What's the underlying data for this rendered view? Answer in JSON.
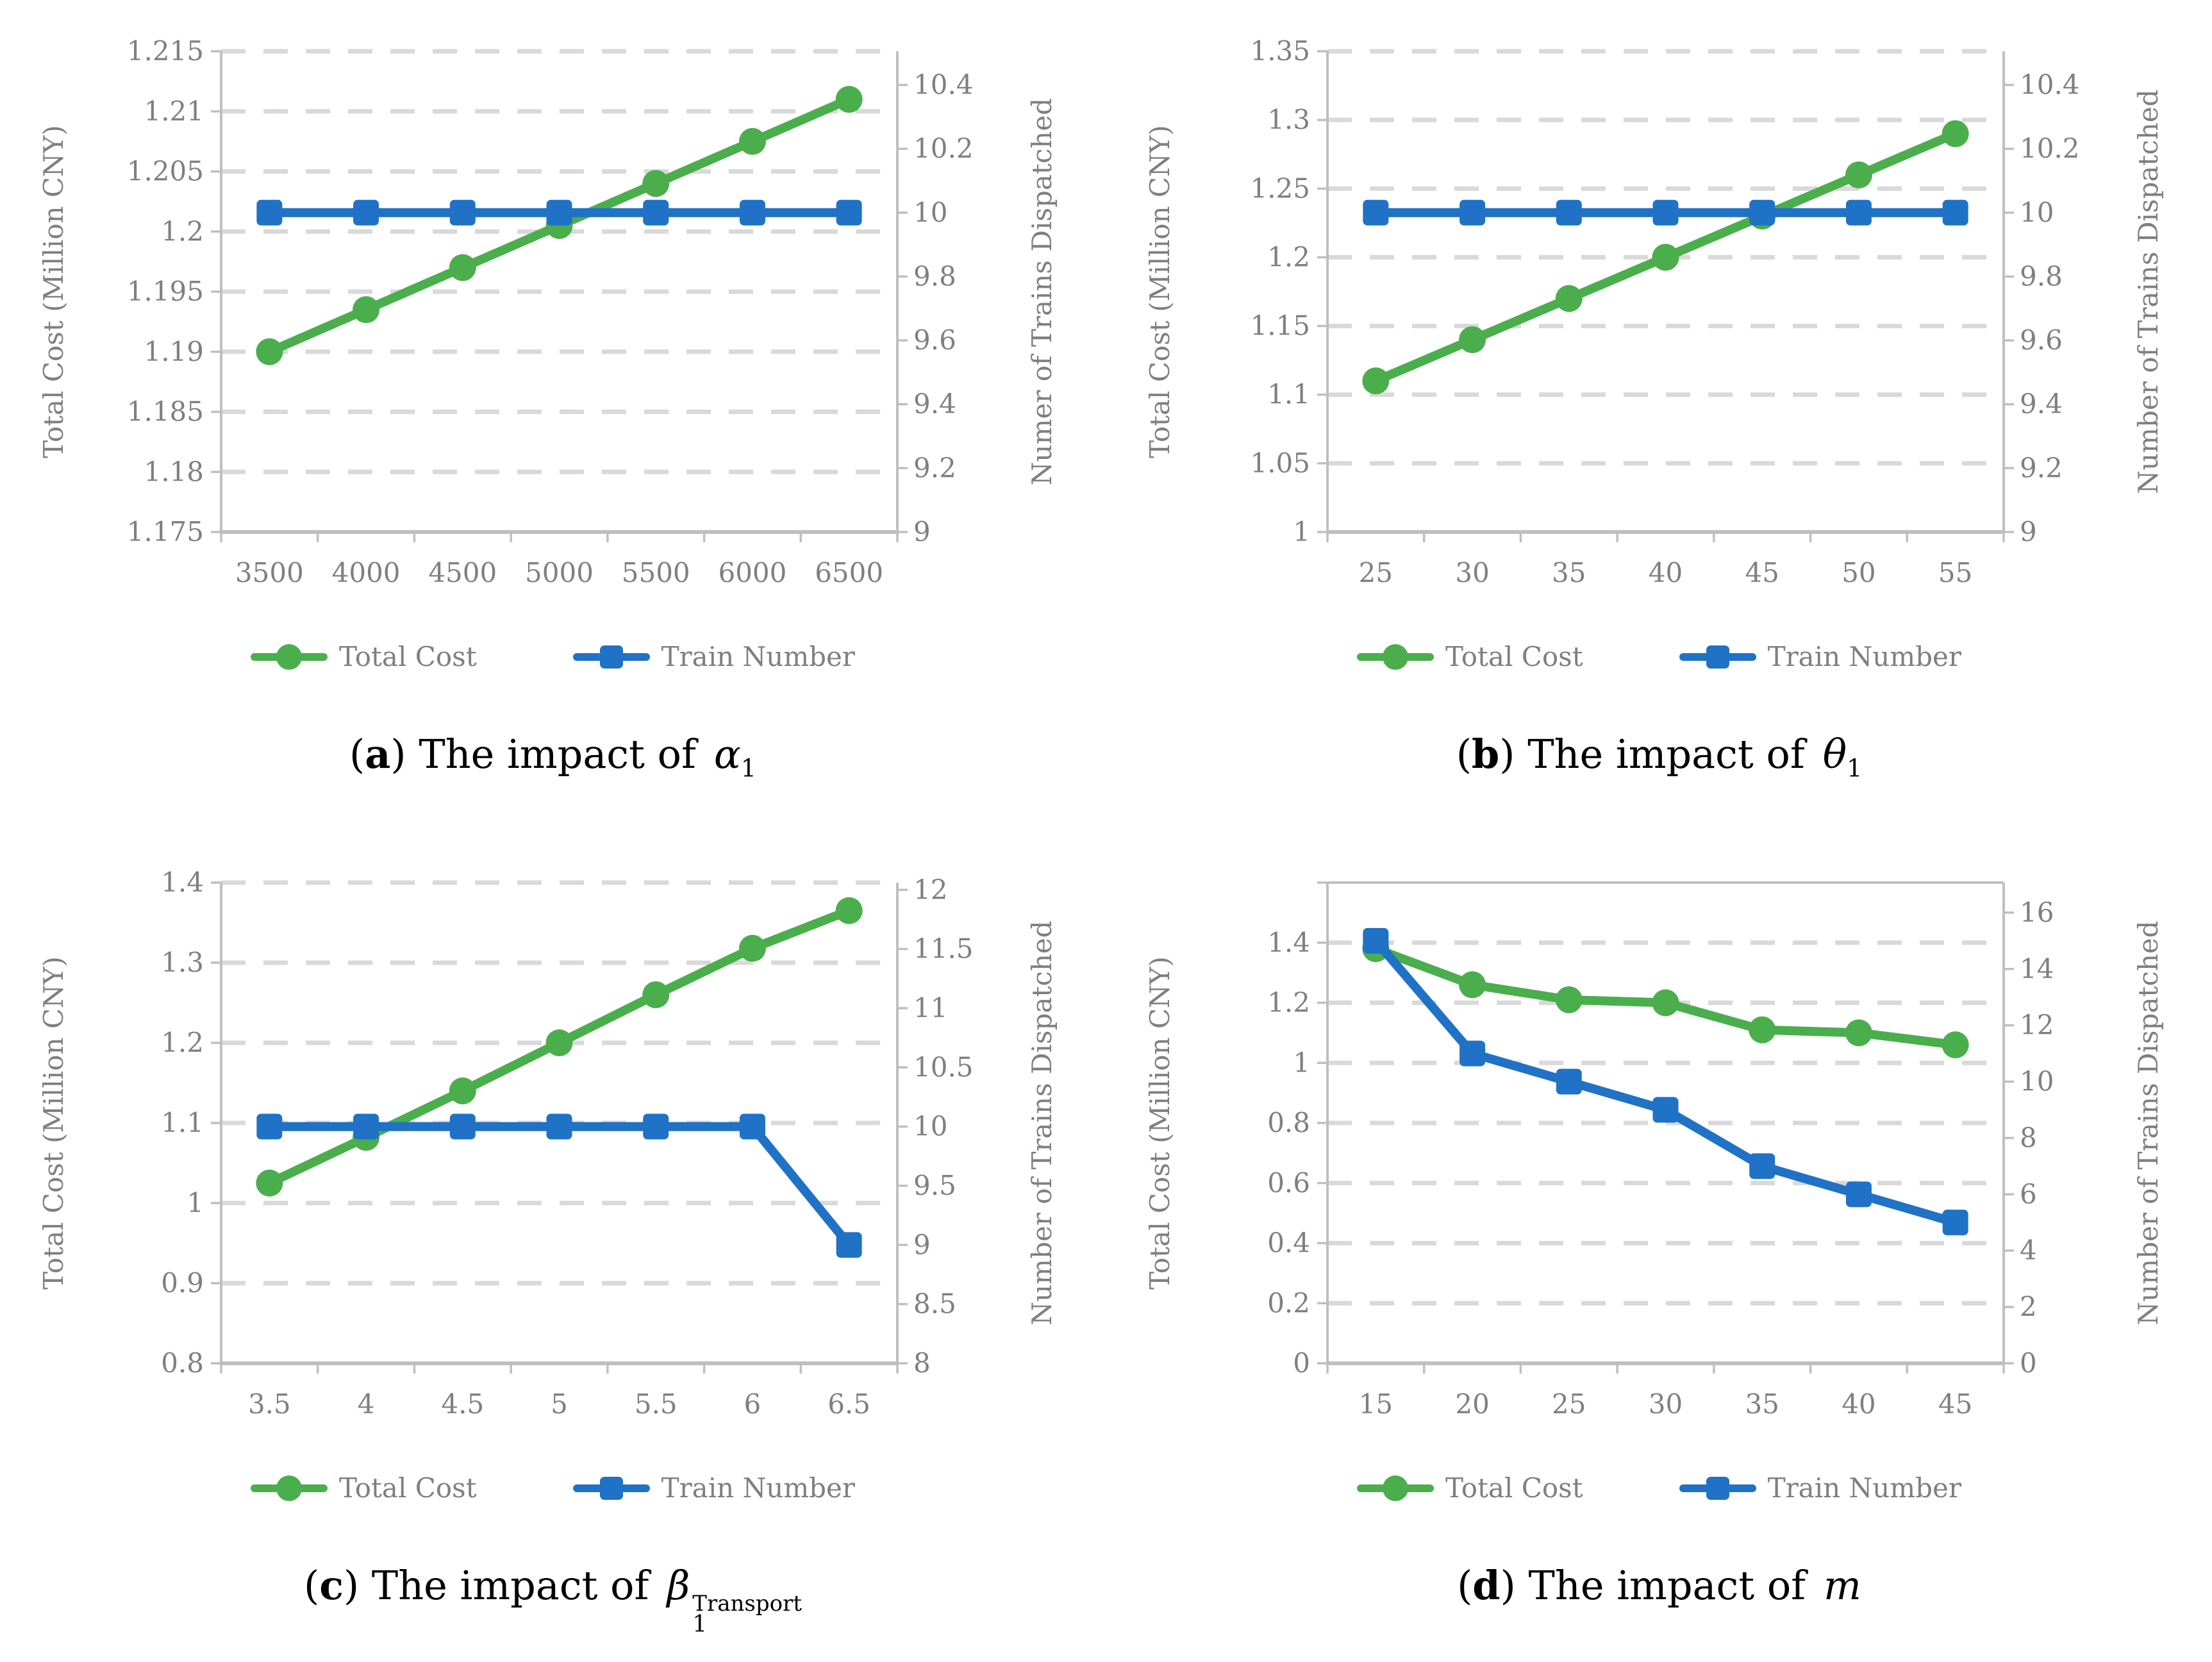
{
  "colors": {
    "green": "#4aae4c",
    "blue": "#1f72c5",
    "axis": "#bfbfbf",
    "grid": "#d9d9d9",
    "tick_text": "#7f7f7f",
    "axis_title_text": "#7f7f7f",
    "legend_text": "#7f7f7f",
    "caption_text": "#000000"
  },
  "legend": {
    "total_cost": "Total Cost",
    "train_number": "Train Number"
  },
  "chart_data": [
    {
      "panel": "a",
      "type": "line",
      "caption": {
        "letter": "a",
        "prefix": "The impact of",
        "symbol": "α",
        "sub": "1",
        "sup": ""
      },
      "categories": [
        "3500",
        "4000",
        "4500",
        "5000",
        "5500",
        "6000",
        "6500"
      ],
      "left_axis": {
        "title": "Total Cost (Million CNY)",
        "min": 1.175,
        "max": 1.215,
        "step": 0.005,
        "decimals": 3
      },
      "right_axis": {
        "title": "Numer of Trains Dispatched",
        "min": 9,
        "max": 10.4,
        "step": 0.2,
        "decimals": 1,
        "scale": 0.93
      },
      "top_border": false,
      "series": [
        {
          "name": "Total Cost",
          "axis": "left",
          "marker": "circle",
          "values": [
            1.19,
            1.1935,
            1.197,
            1.2005,
            1.204,
            1.2075,
            1.211
          ]
        },
        {
          "name": "Train Number",
          "axis": "right",
          "marker": "square",
          "values": [
            10,
            10,
            10,
            10,
            10,
            10,
            10
          ]
        }
      ]
    },
    {
      "panel": "b",
      "type": "line",
      "caption": {
        "letter": "b",
        "prefix": "The impact of",
        "symbol": "θ",
        "sub": "1",
        "sup": ""
      },
      "categories": [
        "25",
        "30",
        "35",
        "40",
        "45",
        "50",
        "55"
      ],
      "left_axis": {
        "title": "Total Cost (Million CNY)",
        "min": 1,
        "max": 1.35,
        "step": 0.05,
        "decimals": 2
      },
      "right_axis": {
        "title": "Number of Trains Dispatched",
        "min": 9,
        "max": 10.4,
        "step": 0.2,
        "decimals": 1,
        "scale": 0.93
      },
      "top_border": false,
      "series": [
        {
          "name": "Total Cost",
          "axis": "left",
          "marker": "circle",
          "values": [
            1.11,
            1.14,
            1.17,
            1.2,
            1.23,
            1.26,
            1.29
          ]
        },
        {
          "name": "Train Number",
          "axis": "right",
          "marker": "square",
          "values": [
            10,
            10,
            10,
            10,
            10,
            10,
            10
          ]
        }
      ]
    },
    {
      "panel": "c",
      "type": "line",
      "caption": {
        "letter": "c",
        "prefix": "The impact of",
        "symbol": "β",
        "sub": "1",
        "sup": "Transport"
      },
      "categories": [
        "3.5",
        "4",
        "4.5",
        "5",
        "5.5",
        "6",
        "6.5"
      ],
      "left_axis": {
        "title": "Total Cost (Million CNY)",
        "min": 0.8,
        "max": 1.4,
        "step": 0.1,
        "decimals": 1
      },
      "right_axis": {
        "title": "Number of Trains Dispatched",
        "min": 8,
        "max": 12,
        "step": 0.5,
        "decimals": 1,
        "scale": 0.985
      },
      "top_border": false,
      "series": [
        {
          "name": "Total Cost",
          "axis": "left",
          "marker": "circle",
          "values": [
            1.025,
            1.082,
            1.14,
            1.2,
            1.26,
            1.318,
            1.365
          ]
        },
        {
          "name": "Train Number",
          "axis": "right",
          "marker": "square",
          "values": [
            10,
            10,
            10,
            10,
            10,
            10,
            9
          ]
        }
      ]
    },
    {
      "panel": "d",
      "type": "line",
      "caption": {
        "letter": "d",
        "prefix": "The impact of",
        "symbol": "m",
        "sub": "",
        "sup": ""
      },
      "categories": [
        "15",
        "20",
        "25",
        "30",
        "35",
        "40",
        "45"
      ],
      "left_axis": {
        "title": "Total Cost (Million CNY)",
        "min": 0,
        "max": 1.6,
        "step": 0.2,
        "decimals": 1,
        "label_max": 1.4
      },
      "right_axis": {
        "title": "Number of Trains Dispatched",
        "min": 0,
        "max": 16,
        "step": 2,
        "decimals": 0,
        "scale": 0.9375
      },
      "top_border": true,
      "series": [
        {
          "name": "Total Cost",
          "axis": "left",
          "marker": "circle",
          "values": [
            1.38,
            1.26,
            1.21,
            1.2,
            1.11,
            1.1,
            1.06
          ]
        },
        {
          "name": "Train Number",
          "axis": "right",
          "marker": "square",
          "values": [
            15,
            11,
            10,
            9,
            7,
            6,
            5
          ]
        }
      ]
    }
  ]
}
